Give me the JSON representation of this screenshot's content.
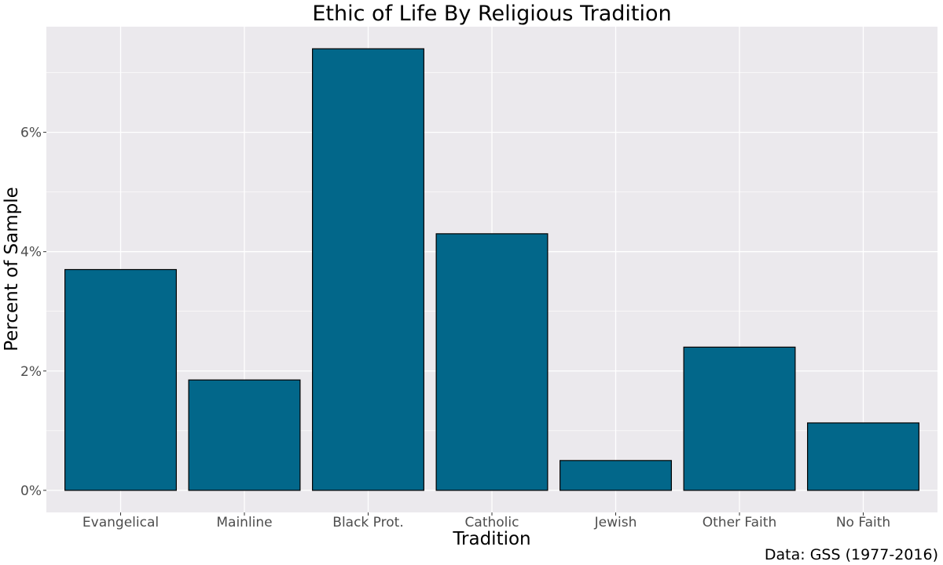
{
  "chart_data": {
    "type": "bar",
    "title": "Ethic of Life By Religious Tradition",
    "xlabel": "Tradition",
    "ylabel": "Percent of Sample",
    "caption": "Data: GSS (1977-2016)",
    "categories": [
      "Evangelical",
      "Mainline",
      "Black Prot.",
      "Catholic",
      "Jewish",
      "Other Faith",
      "No Faith"
    ],
    "values": [
      3.7,
      1.85,
      7.4,
      4.3,
      0.5,
      2.4,
      1.13
    ],
    "ylim": [
      -0.37,
      7.77
    ],
    "yticks": [
      0,
      2,
      4,
      6
    ],
    "ytick_labels": [
      "0%",
      "2%",
      "4%",
      "6%"
    ],
    "grid": true,
    "colors": {
      "bar_fill": "#02678A",
      "bar_stroke": "#000000",
      "panel_bg": "#EBE9ED",
      "grid": "#FFFFFF"
    }
  }
}
